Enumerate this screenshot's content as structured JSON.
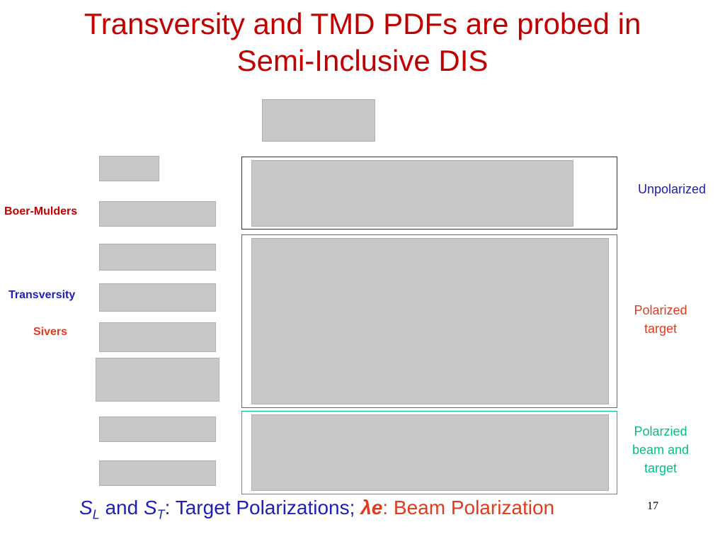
{
  "slide": {
    "title_line1": "Transversity and TMD PDFs are probed in",
    "title_line2": "Semi-Inclusive DIS",
    "page_number": "17"
  },
  "row_labels": {
    "boer_mulders": "Boer-Mulders",
    "transversity": "Transversity",
    "sivers": "Sivers"
  },
  "box_labels": {
    "unpolarized": "Unpolarized",
    "polarized_target_line1": "Polarized",
    "polarized_target_line2": "target",
    "polarized_beam_line1": "Polarzied",
    "polarized_beam_line2": "beam and",
    "polarized_beam_line3": "target"
  },
  "colors": {
    "title": "#c00000",
    "unpolarized": "#2020b0",
    "polarized_target": "#e23a1e",
    "polarized_beam": "#00c08a",
    "boer_mulders_label": "#c00000",
    "transversity_label": "#1f1fb4",
    "sivers_label": "#e23a1e",
    "footer": "#1f1fb4",
    "footer_accent": "#e23a1e"
  },
  "footer": {
    "s": "S",
    "sub_l": "L",
    "and": " and ",
    "sub_t": "T",
    "rest": ": Target Polarizations; ",
    "lambda": "λe",
    "beam": ": Beam Polarization"
  }
}
